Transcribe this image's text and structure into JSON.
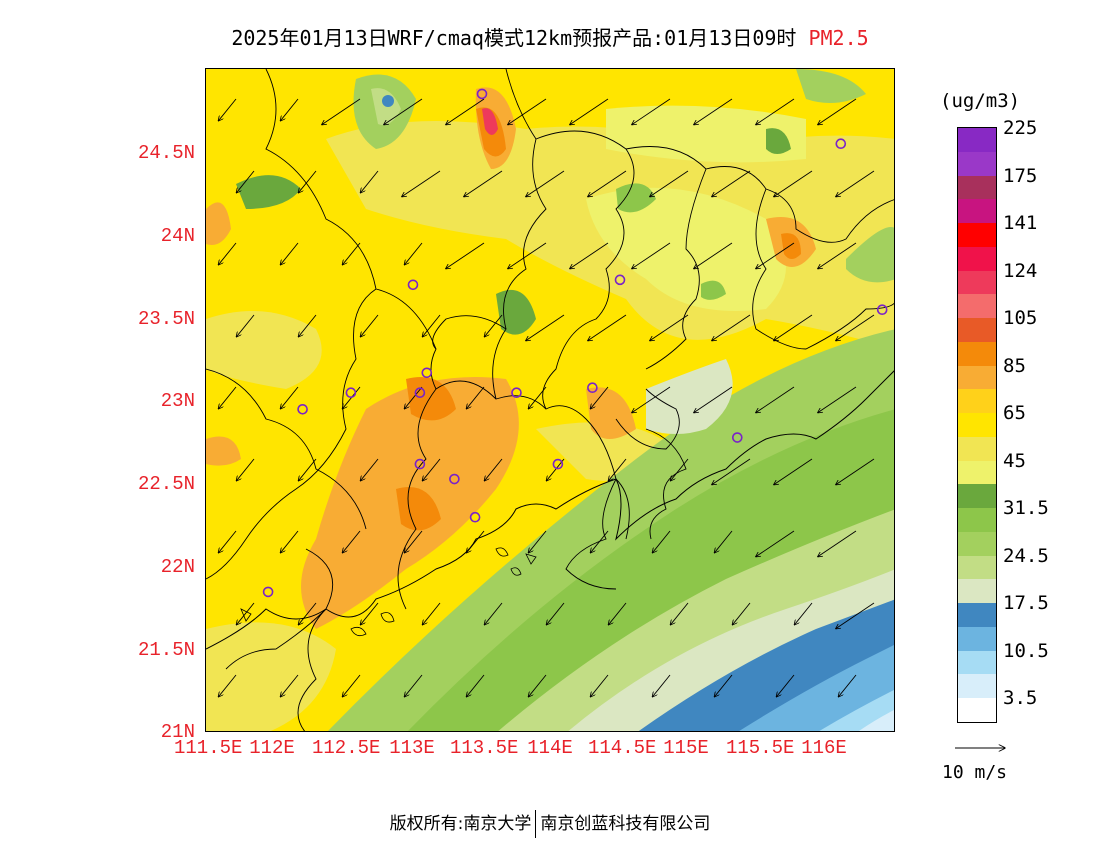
{
  "title": {
    "main": "2025年01月13日WRF/cmaq模式12km预报产品:01月13日09时",
    "species": "PM2.5"
  },
  "map": {
    "lat_ticks": [
      "24.5N",
      "24N",
      "23.5N",
      "23N",
      "22.5N",
      "22N",
      "21.5N",
      "21N"
    ],
    "lon_ticks": [
      "111.5E",
      "112E",
      "112.5E",
      "113E",
      "113.5E",
      "114E",
      "114.5E",
      "115E",
      "115.5E",
      "116E"
    ],
    "lon_range": [
      111.5,
      116.5
    ],
    "lat_range": [
      21.0,
      25.0
    ]
  },
  "colorbar": {
    "unit": "(ug/m3)",
    "colors": [
      "#ffffff",
      "#d8eefa",
      "#a6dcf4",
      "#6cb4e0",
      "#4087c0",
      "#dbe7c2",
      "#c2dd85",
      "#a3d05e",
      "#8dc64a",
      "#6aa83d",
      "#eef26b",
      "#f1e553",
      "#ffe500",
      "#ffd11a",
      "#f8ac34",
      "#f48a0a",
      "#e85a27",
      "#f46c6c",
      "#ee3a5b",
      "#f0124a",
      "#ff0000",
      "#c81480",
      "#a8305c",
      "#9a38c8",
      "#8829c4"
    ],
    "labels": [
      "3.5",
      "10.5",
      "17.5",
      "24.5",
      "31.5",
      "45",
      "65",
      "85",
      "105",
      "124",
      "141",
      "175",
      "225"
    ]
  },
  "wind_reference": {
    "label": "10 m/s"
  },
  "stations": [
    {
      "lon": 113.5,
      "lat": 24.85
    },
    {
      "lon": 116.1,
      "lat": 24.55
    },
    {
      "lon": 113.0,
      "lat": 23.7
    },
    {
      "lon": 114.5,
      "lat": 23.73
    },
    {
      "lon": 116.4,
      "lat": 23.55
    },
    {
      "lon": 113.1,
      "lat": 23.17
    },
    {
      "lon": 113.05,
      "lat": 23.05
    },
    {
      "lon": 112.55,
      "lat": 23.05
    },
    {
      "lon": 112.2,
      "lat": 22.95
    },
    {
      "lon": 113.75,
      "lat": 23.05
    },
    {
      "lon": 114.3,
      "lat": 23.08
    },
    {
      "lon": 115.35,
      "lat": 22.78
    },
    {
      "lon": 113.05,
      "lat": 22.62
    },
    {
      "lon": 113.3,
      "lat": 22.53
    },
    {
      "lon": 114.05,
      "lat": 22.62
    },
    {
      "lon": 113.45,
      "lat": 22.3
    },
    {
      "lon": 111.95,
      "lat": 21.85
    }
  ],
  "footer": {
    "left": "版权所有:南京大学",
    "right": "南京创蓝科技有限公司"
  }
}
